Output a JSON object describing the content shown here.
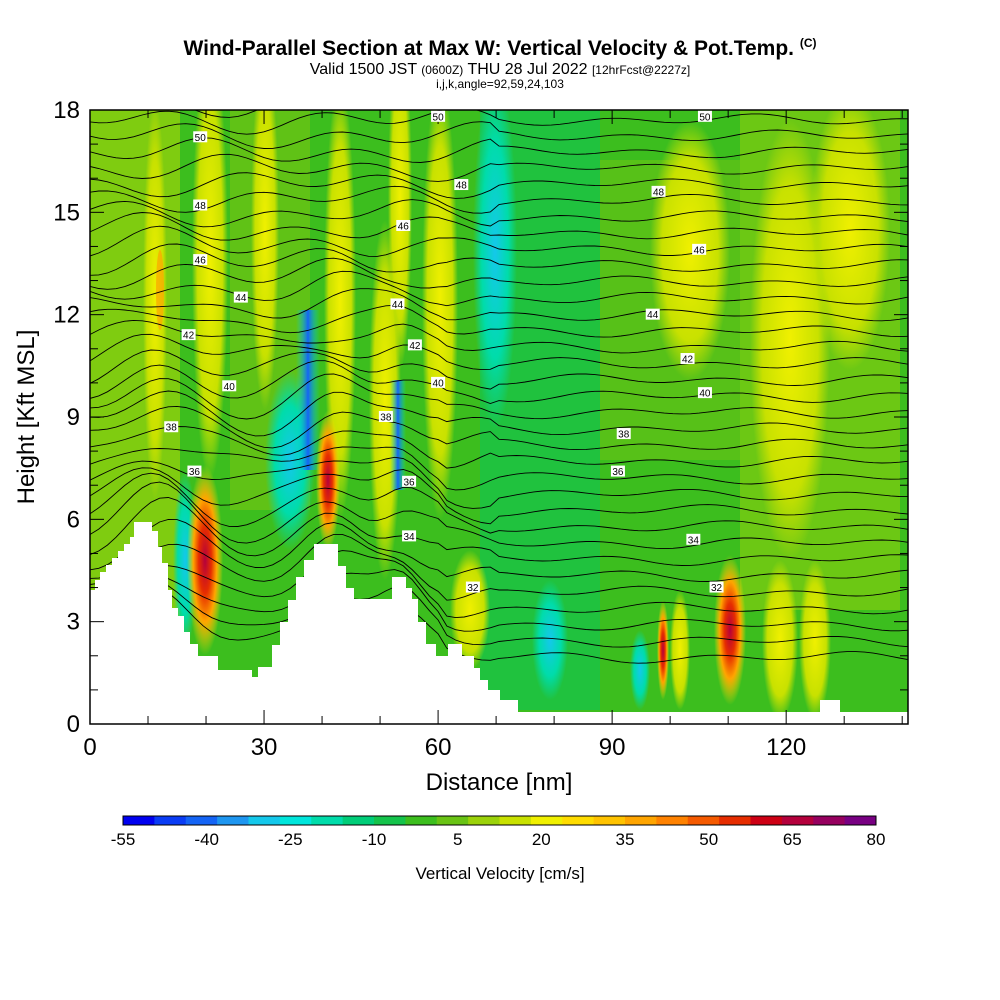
{
  "header": {
    "title_main": "Wind-Parallel Section at Max W: Vertical Velocity & Pot.Temp.",
    "title_tag": "(C)",
    "valid_a": "Valid 1500 JST",
    "valid_b": "(0600Z)",
    "valid_c": "THU 28 Jul 2022",
    "valid_d": "[12hrFcst@2227z]",
    "indices": "i,j,k,angle=92,59,24,103"
  },
  "chart_data": {
    "type": "heatmap",
    "xlabel": "Distance [nm]",
    "ylabel": "Height [Kft MSL]",
    "xlim": [
      0,
      141
    ],
    "ylim": [
      0,
      18
    ],
    "x_ticks": [
      0,
      30,
      60,
      90,
      120
    ],
    "y_ticks": [
      0,
      3,
      6,
      9,
      12,
      15,
      18
    ],
    "colorbar": {
      "label": "Vertical Velocity [cm/s]",
      "range": [
        -55,
        80
      ],
      "tick_labels": [
        "-55",
        "-40",
        "-25",
        "-10",
        "5",
        "20",
        "35",
        "50",
        "65",
        "80"
      ],
      "colors": [
        "#0000f0",
        "#0a3cf5",
        "#1464f5",
        "#1e96f0",
        "#14c8eb",
        "#00e6dc",
        "#00dcaa",
        "#00cd78",
        "#14c34b",
        "#3cbe1e",
        "#69c314",
        "#9bd20a",
        "#c8e100",
        "#f0f000",
        "#ffdc00",
        "#ffc300",
        "#ffa500",
        "#ff8200",
        "#f55a00",
        "#e62d00",
        "#cd0014",
        "#b4003c",
        "#96005f",
        "#780082"
      ]
    },
    "potential_temperature_labels": [
      {
        "text": "50",
        "x": 19,
        "y": 17.2
      },
      {
        "text": "50",
        "x": 60,
        "y": 17.8
      },
      {
        "text": "50",
        "x": 106,
        "y": 17.8
      },
      {
        "text": "48",
        "x": 19,
        "y": 15.2
      },
      {
        "text": "48",
        "x": 64,
        "y": 15.8
      },
      {
        "text": "48",
        "x": 98,
        "y": 15.6
      },
      {
        "text": "46",
        "x": 19,
        "y": 13.6
      },
      {
        "text": "46",
        "x": 54,
        "y": 14.6
      },
      {
        "text": "46",
        "x": 105,
        "y": 13.9
      },
      {
        "text": "44",
        "x": 26,
        "y": 12.5
      },
      {
        "text": "44",
        "x": 53,
        "y": 12.3
      },
      {
        "text": "44",
        "x": 97,
        "y": 12.0
      },
      {
        "text": "42",
        "x": 17,
        "y": 11.4
      },
      {
        "text": "42",
        "x": 56,
        "y": 11.1
      },
      {
        "text": "42",
        "x": 103,
        "y": 10.7
      },
      {
        "text": "40",
        "x": 24,
        "y": 9.9
      },
      {
        "text": "40",
        "x": 60,
        "y": 10.0
      },
      {
        "text": "40",
        "x": 106,
        "y": 9.7
      },
      {
        "text": "38",
        "x": 14,
        "y": 8.7
      },
      {
        "text": "38",
        "x": 51,
        "y": 9.0
      },
      {
        "text": "38",
        "x": 92,
        "y": 8.5
      },
      {
        "text": "36",
        "x": 18,
        "y": 7.4
      },
      {
        "text": "36",
        "x": 55,
        "y": 7.1
      },
      {
        "text": "36",
        "x": 91,
        "y": 7.4
      },
      {
        "text": "34",
        "x": 55,
        "y": 5.5
      },
      {
        "text": "34",
        "x": 104,
        "y": 5.4
      },
      {
        "text": "32",
        "x": 66,
        "y": 4.0
      },
      {
        "text": "32",
        "x": 108,
        "y": 4.0
      }
    ]
  }
}
